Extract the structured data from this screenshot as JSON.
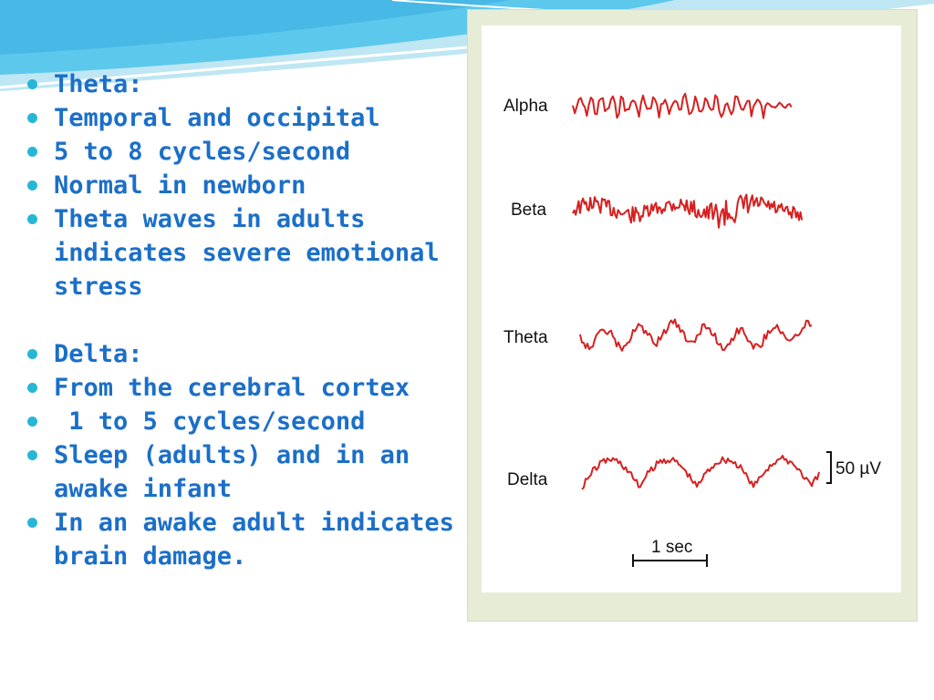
{
  "bullets": [
    "Theta:",
    "Temporal and occipital",
    "5 to 8 cycles/second",
    "Normal in newborn",
    "Theta waves in adults indicates severe emotional stress",
    "",
    "Delta:",
    "From the cerebral cortex",
    " 1 to 5 cycles/second",
    "Sleep (adults) and in an awake infant",
    "In an awake adult indicates brain damage."
  ],
  "figure": {
    "waves": [
      {
        "label": "Alpha"
      },
      {
        "label": "Beta"
      },
      {
        "label": "Theta"
      },
      {
        "label": "Delta"
      }
    ],
    "amplitude_scale": "50 µV",
    "time_scale": "1 sec"
  },
  "colors": {
    "text": "#1b6fc8",
    "bullet": "#27b6d6",
    "wave": "#d62020",
    "panel": "#e6ecd6",
    "header": "#4fc3e6"
  }
}
